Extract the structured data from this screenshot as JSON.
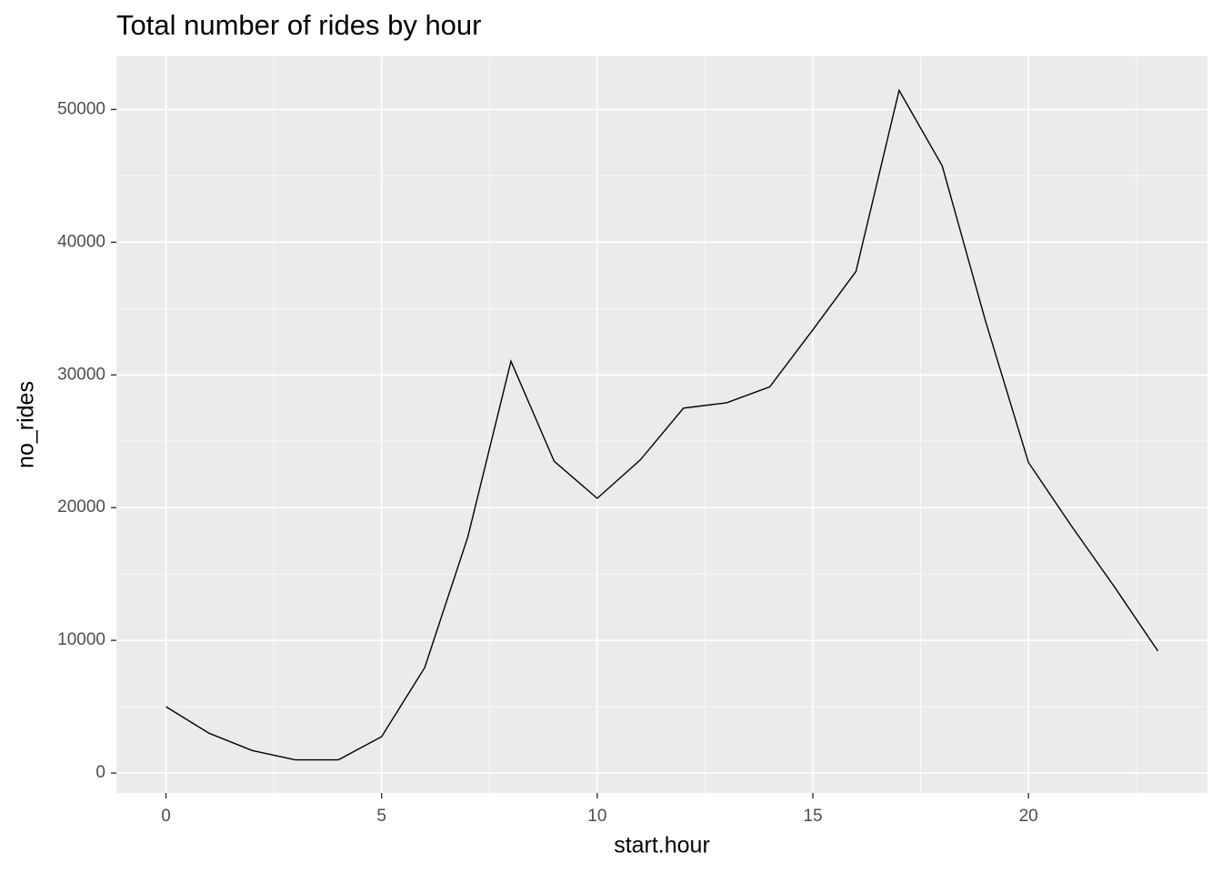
{
  "chart_data": {
    "type": "line",
    "title": "Total number of rides by hour",
    "x_label": "start.hour",
    "y_label": "no_rides",
    "x": [
      0,
      1,
      2,
      3,
      4,
      5,
      6,
      7,
      8,
      9,
      10,
      11,
      12,
      13,
      14,
      15,
      16,
      17,
      18,
      19,
      20,
      21,
      22,
      23
    ],
    "series": [
      {
        "name": "no_rides",
        "color": "#000000",
        "values": [
          5000,
          3000,
          1700,
          1000,
          1000,
          2740,
          7950,
          17800,
          31030,
          23500,
          20700,
          23600,
          27500,
          27900,
          29100,
          33400,
          37800,
          51440,
          45750,
          34100,
          23400,
          18600,
          14000,
          9200
        ]
      }
    ],
    "xlim": [
      -1.15,
      24.15
    ],
    "ylim": [
      -1500,
      54000
    ],
    "xticks": [
      0,
      5,
      10,
      15,
      20
    ],
    "yticks": [
      0,
      10000,
      20000,
      30000,
      40000,
      50000
    ],
    "grid": true
  }
}
